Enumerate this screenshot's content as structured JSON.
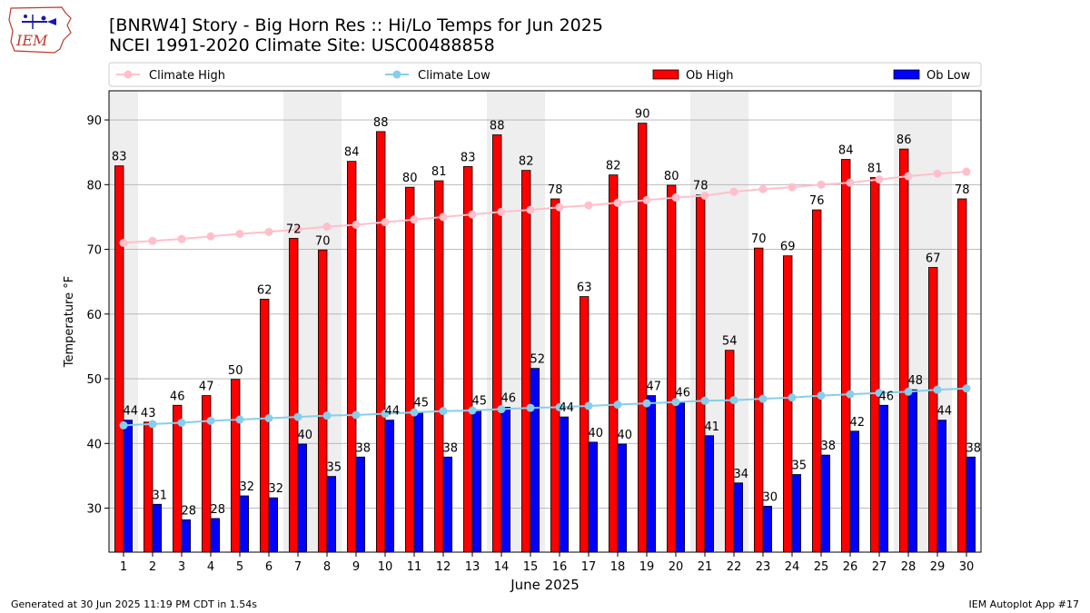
{
  "header": {
    "title_line1": "[BNRW4] Story - Big Horn Res :: Hi/Lo Temps for Jun 2025",
    "title_line2": "NCEI 1991-2020 Climate Site: USC00488858",
    "logo_text": "IEM"
  },
  "footer": {
    "generated": "Generated at 30 Jun 2025 11:19 PM CDT in 1.54s",
    "app": "IEM Autoplot App #17"
  },
  "chart_data": {
    "type": "bar",
    "xlabel": "June 2025",
    "ylabel": "Temperature °F",
    "ylim": [
      23.2,
      94.5
    ],
    "xlim": [
      0.5,
      30.5
    ],
    "yticks": [
      30,
      40,
      50,
      60,
      70,
      80,
      90
    ],
    "categories": [
      "1",
      "2",
      "3",
      "4",
      "5",
      "6",
      "7",
      "8",
      "9",
      "10",
      "11",
      "12",
      "13",
      "14",
      "15",
      "16",
      "17",
      "18",
      "19",
      "20",
      "21",
      "22",
      "23",
      "24",
      "25",
      "26",
      "27",
      "28",
      "29",
      "30"
    ],
    "weekend_shading": [
      [
        1,
        1
      ],
      [
        7,
        8
      ],
      [
        14,
        15
      ],
      [
        21,
        22
      ],
      [
        28,
        29
      ]
    ],
    "grid": "horizontal",
    "legend_position": "top",
    "colors": {
      "ob_high": "#ff0000",
      "ob_low": "#0000ff",
      "climate_high": "#ffc0cb",
      "climate_low": "#87ceeb",
      "shade": "#eeeeee"
    },
    "series": [
      {
        "name": "Ob High",
        "kind": "bar",
        "values": [
          82.9,
          43.3,
          45.9,
          47.4,
          49.9,
          62.3,
          71.7,
          69.9,
          83.6,
          88.2,
          79.6,
          80.6,
          82.8,
          87.7,
          82.2,
          77.8,
          62.7,
          81.5,
          89.5,
          79.9,
          78.4,
          54.4,
          70.2,
          69.0,
          76.1,
          83.9,
          81.1,
          85.5,
          67.2,
          77.8
        ],
        "labels": [
          "83",
          "43",
          "46",
          "47",
          "50",
          "62",
          "72",
          "70",
          "84",
          "88",
          "80",
          "81",
          "83",
          "88",
          "82",
          "78",
          "63",
          "82",
          "90",
          "80",
          "78",
          "54",
          "70",
          "69",
          "76",
          "84",
          "81",
          "86",
          "67",
          "78"
        ]
      },
      {
        "name": "Ob Low",
        "kind": "bar",
        "values": [
          43.6,
          30.6,
          28.2,
          28.4,
          31.9,
          31.6,
          39.9,
          34.9,
          37.9,
          43.6,
          44.9,
          37.9,
          45.2,
          45.6,
          51.6,
          44.1,
          40.2,
          39.9,
          47.4,
          46.4,
          41.2,
          33.9,
          30.3,
          35.2,
          38.2,
          41.9,
          45.9,
          48.3,
          43.6,
          37.9
        ],
        "labels": [
          "44",
          "31",
          "28",
          "28",
          "32",
          "32",
          "40",
          "35",
          "38",
          "44",
          "45",
          "38",
          "45",
          "46",
          "52",
          "44",
          "40",
          "40",
          "47",
          "46",
          "41",
          "34",
          "30",
          "35",
          "38",
          "42",
          "46",
          "48",
          "44",
          "38"
        ]
      },
      {
        "name": "Climate High",
        "kind": "line",
        "values": [
          71.0,
          71.3,
          71.6,
          72.0,
          72.4,
          72.7,
          73.1,
          73.5,
          73.8,
          74.2,
          74.6,
          75.0,
          75.4,
          75.8,
          76.1,
          76.5,
          76.8,
          77.2,
          77.6,
          78.0,
          78.3,
          78.9,
          79.3,
          79.6,
          80.0,
          80.3,
          80.8,
          81.3,
          81.7,
          82.0
        ]
      },
      {
        "name": "Climate Low",
        "kind": "line",
        "values": [
          42.8,
          43.0,
          43.2,
          43.5,
          43.7,
          43.9,
          44.1,
          44.3,
          44.4,
          44.6,
          44.8,
          45.0,
          45.1,
          45.3,
          45.5,
          45.6,
          45.8,
          46.0,
          46.2,
          46.4,
          46.6,
          46.7,
          46.9,
          47.1,
          47.4,
          47.6,
          47.8,
          48.0,
          48.3,
          48.5
        ]
      }
    ]
  }
}
